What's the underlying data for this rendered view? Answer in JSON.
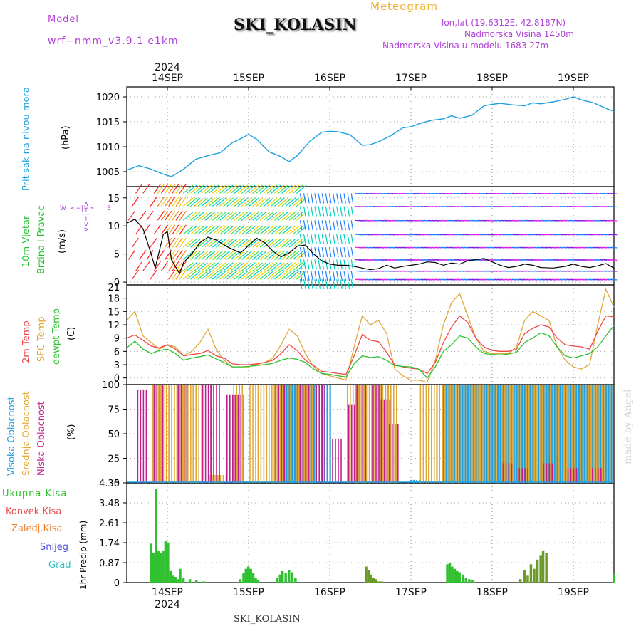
{
  "header": {
    "model_label": "Model",
    "model_name": "wrf−nmm_v3.9.1  e1km",
    "meteogram": "Meteogram",
    "station": "SKI_KOLASIN",
    "lonlat": "lon,lat (19.6312E, 42.8187N)",
    "altitude": "Nadmorska Visina 1450m",
    "model_altitude": "Nadmorska Visina u modelu 1683.27m",
    "footer_station": "SKI_KOLASIN",
    "credit": "made by Angel"
  },
  "time_axis": {
    "year_label": "2024",
    "days": [
      "14SEP",
      "15SEP",
      "16SEP",
      "17SEP",
      "18SEP",
      "19SEP"
    ],
    "range_days": [
      -0.5,
      5.5
    ]
  },
  "colors": {
    "pressure": "#1aa0e0",
    "wind_speed": "#000000",
    "temp2m": "#f04848",
    "sfc_temp": "#e0a838",
    "dewpt": "#30c030",
    "high_cloud": "#20a0e0",
    "mid_cloud": "#e0a838",
    "low_cloud": "#c0208a",
    "precip_total": "#30c030",
    "precip_conv": "#f04848",
    "precip_freez": "#f08030",
    "snow": "#5050e0",
    "grad": "#30c0c0",
    "wind_label": "#20c030",
    "cloud_label1": "#20a0e0"
  },
  "panels": {
    "pressure": {
      "ylabel": "Pritisak na nivou mora",
      "unit": "(hPa)",
      "yticks": [
        1005,
        1010,
        1015,
        1020
      ],
      "ylim": [
        1002,
        1022
      ]
    },
    "wind": {
      "ylabel1": "10m Vjetar",
      "ylabel2": "Brzina i Pravac",
      "unit": "(m/s)",
      "compass_n": "N",
      "compass_s": "S",
      "compass_w": "W",
      "compass_e": "E",
      "compass_arrows": "<−|−>",
      "compass_v": "v<−|−>",
      "yticks": [
        0,
        5,
        10,
        15
      ],
      "ylim": [
        -0.5,
        17
      ]
    },
    "temperature": {
      "label_2m": "2m Temp",
      "label_sfc": "SFC Temp",
      "label_dew": "dewpt Temp",
      "unit": "(C)",
      "yticks": [
        0,
        3,
        6,
        9,
        12,
        15,
        18
      ],
      "top_tick": "21",
      "ylim": [
        -1.5,
        21
      ]
    },
    "clouds": {
      "label_high": "Visoka Oblacnost",
      "label_mid": "Srednja Oblacnost",
      "label_low": "Niska Oblacnost",
      "unit": "(%)",
      "yticks": [
        0,
        25,
        50,
        75,
        100
      ],
      "ylim": [
        0,
        100
      ]
    },
    "precip": {
      "unit": "1hr Precip (mm)",
      "yticks": [
        "0",
        "0.87",
        "1.74",
        "2.61",
        "3.48",
        "4.35"
      ],
      "ymax": 4.35,
      "legend": [
        "Ukupna Kisa",
        "Konvek.Kisa",
        "Zaledj.Kisa",
        "Snijeg",
        "Grad"
      ]
    }
  },
  "chart_data": [
    {
      "type": "line",
      "panel": "pressure",
      "x_unit": "day offset from 14SEP",
      "series": [
        {
          "x": [
            -0.5,
            -0.35,
            -0.2,
            -0.05,
            0.05,
            0.2,
            0.35,
            0.5,
            0.65,
            0.8,
            0.95,
            1.0,
            1.1,
            1.25,
            1.4,
            1.5,
            1.6,
            1.75,
            1.9,
            2.0,
            2.1,
            2.25,
            2.4,
            2.5,
            2.6,
            2.75,
            2.9,
            3.0,
            3.1,
            3.25,
            3.4,
            3.5,
            3.6,
            3.75,
            3.9,
            4.0,
            4.1,
            4.25,
            4.4,
            4.5,
            4.6,
            4.75,
            4.9,
            5.0,
            5.1,
            5.25,
            5.4,
            5.5
          ],
          "y": [
            1005.3,
            1006.2,
            1005.5,
            1004.5,
            1004.0,
            1005.5,
            1007.5,
            1008.2,
            1008.8,
            1010.8,
            1012.0,
            1012.5,
            1011.5,
            1009.0,
            1008.0,
            1007.0,
            1008.2,
            1011.0,
            1012.9,
            1013.1,
            1013.0,
            1012.4,
            1010.3,
            1010.4,
            1011.0,
            1012.2,
            1013.8,
            1014.0,
            1014.6,
            1015.3,
            1015.6,
            1016.2,
            1015.7,
            1016.3,
            1018.2,
            1018.5,
            1018.7,
            1018.4,
            1018.2,
            1018.8,
            1018.6,
            1019.0,
            1019.5,
            1020.0,
            1019.4,
            1018.8,
            1017.7,
            1017.1
          ]
        }
      ]
    },
    {
      "type": "line",
      "panel": "wind",
      "series": [
        {
          "name": "wind speed",
          "x": [
            -0.5,
            -0.4,
            -0.3,
            -0.2,
            -0.15,
            -0.05,
            0.0,
            0.05,
            0.15,
            0.2,
            0.3,
            0.4,
            0.5,
            0.6,
            0.75,
            0.9,
            1.0,
            1.1,
            1.2,
            1.3,
            1.4,
            1.5,
            1.6,
            1.7,
            1.8,
            1.9,
            2.0,
            2.1,
            2.2,
            2.3,
            2.4,
            2.5,
            2.6,
            2.7,
            2.8,
            2.9,
            3.0,
            3.1,
            3.2,
            3.3,
            3.4,
            3.5,
            3.6,
            3.7,
            3.8,
            3.9,
            4.0,
            4.1,
            4.2,
            4.3,
            4.4,
            4.5,
            4.6,
            4.75,
            4.9,
            5.0,
            5.1,
            5.2,
            5.3,
            5.4,
            5.5
          ],
          "y": [
            10.5,
            11.2,
            9.5,
            5.0,
            2.5,
            8.5,
            9.0,
            4.0,
            1.5,
            3.5,
            5.0,
            7.0,
            8.0,
            7.5,
            6.2,
            5.2,
            6.5,
            7.8,
            7.0,
            5.5,
            4.5,
            5.2,
            6.4,
            6.6,
            5.0,
            3.8,
            3.2,
            3.0,
            3.0,
            2.8,
            2.5,
            2.2,
            2.4,
            3.0,
            2.5,
            2.8,
            3.0,
            3.2,
            3.6,
            3.5,
            3.0,
            3.4,
            3.2,
            3.8,
            4.0,
            4.2,
            3.6,
            3.0,
            2.6,
            2.8,
            3.2,
            3.0,
            2.6,
            2.5,
            2.8,
            3.2,
            2.8,
            2.6,
            2.9,
            3.3,
            2.5
          ]
        }
      ]
    },
    {
      "type": "line",
      "panel": "temperature",
      "series": [
        {
          "name": "2m Temp",
          "x": [
            -0.5,
            -0.4,
            -0.3,
            -0.2,
            -0.1,
            0.0,
            0.1,
            0.2,
            0.3,
            0.4,
            0.5,
            0.6,
            0.7,
            0.8,
            0.9,
            1.0,
            1.1,
            1.2,
            1.3,
            1.4,
            1.5,
            1.6,
            1.7,
            1.8,
            1.9,
            2.0,
            2.1,
            2.2,
            2.3,
            2.4,
            2.5,
            2.6,
            2.7,
            2.8,
            2.9,
            3.0,
            3.1,
            3.2,
            3.3,
            3.4,
            3.5,
            3.6,
            3.7,
            3.8,
            3.9,
            4.0,
            4.1,
            4.2,
            4.3,
            4.4,
            4.5,
            4.6,
            4.7,
            4.8,
            4.9,
            5.0,
            5.1,
            5.2,
            5.3,
            5.4,
            5.5
          ],
          "y": [
            9.0,
            9.7,
            8.5,
            7.2,
            6.8,
            7.5,
            6.5,
            5.0,
            5.3,
            5.5,
            6.2,
            5.0,
            4.5,
            3.2,
            3.0,
            3.0,
            3.2,
            3.5,
            4.0,
            5.5,
            7.5,
            6.2,
            4.0,
            2.8,
            1.5,
            1.3,
            1.0,
            0.8,
            5.0,
            9.8,
            8.5,
            8.2,
            5.8,
            3.0,
            2.5,
            2.2,
            2.0,
            1.0,
            3.5,
            8.0,
            11.5,
            14.0,
            12.5,
            9.0,
            7.0,
            6.2,
            6.0,
            6.0,
            6.5,
            10.0,
            11.2,
            12.0,
            11.5,
            9.0,
            7.5,
            7.2,
            7.0,
            6.5,
            10.5,
            14.0,
            13.8
          ]
        },
        {
          "name": "SFC Temp",
          "x": [
            -0.5,
            -0.4,
            -0.3,
            -0.2,
            -0.1,
            0.0,
            0.1,
            0.2,
            0.3,
            0.4,
            0.5,
            0.6,
            0.7,
            0.8,
            0.9,
            1.0,
            1.1,
            1.2,
            1.3,
            1.4,
            1.5,
            1.6,
            1.7,
            1.8,
            1.9,
            2.0,
            2.1,
            2.2,
            2.3,
            2.4,
            2.5,
            2.6,
            2.7,
            2.8,
            2.9,
            3.0,
            3.1,
            3.2,
            3.3,
            3.4,
            3.5,
            3.6,
            3.7,
            3.8,
            3.9,
            4.0,
            4.1,
            4.2,
            4.3,
            4.4,
            4.5,
            4.6,
            4.7,
            4.8,
            4.9,
            5.0,
            5.1,
            5.2,
            5.3,
            5.4,
            5.5
          ],
          "y": [
            13.0,
            15.0,
            9.5,
            8.0,
            6.5,
            7.5,
            7.0,
            5.0,
            6.0,
            8.0,
            11.0,
            6.5,
            4.0,
            2.5,
            2.5,
            2.5,
            3.0,
            3.5,
            4.5,
            7.5,
            11.0,
            9.5,
            5.5,
            2.5,
            1.0,
            0.5,
            0.0,
            -0.5,
            7.0,
            14.0,
            12.0,
            13.0,
            10.0,
            2.0,
            0.5,
            -0.5,
            -0.5,
            -1.0,
            4.0,
            12.0,
            17.0,
            19.0,
            14.0,
            9.0,
            6.0,
            5.5,
            5.5,
            5.5,
            7.0,
            13.0,
            15.0,
            14.0,
            13.0,
            7.0,
            4.0,
            2.5,
            2.0,
            3.0,
            12.0,
            20.0,
            16.0
          ]
        },
        {
          "name": "dewpt Temp",
          "x": [
            -0.5,
            -0.4,
            -0.3,
            -0.2,
            -0.1,
            0.0,
            0.1,
            0.2,
            0.3,
            0.4,
            0.5,
            0.6,
            0.7,
            0.8,
            0.9,
            1.0,
            1.1,
            1.2,
            1.3,
            1.4,
            1.5,
            1.6,
            1.7,
            1.8,
            1.9,
            2.0,
            2.1,
            2.2,
            2.3,
            2.4,
            2.5,
            2.6,
            2.7,
            2.8,
            2.9,
            3.0,
            3.1,
            3.2,
            3.3,
            3.4,
            3.5,
            3.6,
            3.7,
            3.8,
            3.9,
            4.0,
            4.1,
            4.2,
            4.3,
            4.4,
            4.5,
            4.6,
            4.7,
            4.8,
            4.9,
            5.0,
            5.1,
            5.2,
            5.3,
            5.4,
            5.5
          ],
          "y": [
            6.8,
            8.3,
            6.5,
            5.5,
            6.2,
            6.5,
            5.5,
            4.0,
            4.5,
            4.8,
            5.2,
            4.3,
            3.5,
            2.5,
            2.5,
            2.6,
            2.8,
            3.0,
            3.3,
            4.0,
            4.5,
            4.2,
            3.5,
            2.0,
            1.0,
            0.8,
            0.5,
            0.2,
            3.2,
            5.0,
            4.6,
            4.8,
            4.0,
            2.8,
            2.6,
            2.5,
            2.0,
            0.0,
            2.5,
            6.0,
            7.5,
            9.5,
            9.0,
            7.0,
            5.5,
            5.3,
            5.2,
            5.4,
            5.8,
            8.0,
            9.0,
            10.2,
            9.5,
            7.0,
            5.0,
            4.5,
            5.0,
            5.5,
            7.0,
            9.5,
            11.8
          ]
        }
      ]
    },
    {
      "type": "bar",
      "panel": "clouds",
      "series": [
        {
          "name": "Visoka Oblacnost",
          "x": [
            0.3,
            0.9,
            1.4,
            1.5,
            1.6,
            1.7,
            1.9,
            3.0,
            3.4,
            3.5,
            3.6,
            3.7,
            3.8,
            3.9,
            4.0,
            4.1,
            4.2,
            4.3,
            4.4,
            4.5,
            4.6,
            4.7,
            4.8,
            4.9,
            5.0,
            5.1,
            5.2,
            5.3,
            5.4,
            5.5
          ],
          "y": [
            2,
            2,
            100,
            100,
            100,
            100,
            100,
            3,
            100,
            100,
            100,
            100,
            100,
            100,
            100,
            100,
            100,
            100,
            100,
            100,
            100,
            100,
            100,
            100,
            100,
            100,
            100,
            100,
            100,
            100
          ]
        },
        {
          "name": "Srednja Oblacnost",
          "x": [
            -0.2,
            -0.1,
            0.0,
            0.1,
            0.2,
            0.3,
            0.5,
            0.6,
            0.8,
            1.0,
            1.1,
            1.2,
            1.3,
            1.4,
            1.5,
            1.6,
            1.7,
            2.2,
            2.3,
            2.4,
            2.5,
            2.6,
            2.7,
            3.1,
            3.2,
            3.3,
            3.4,
            3.5,
            3.6,
            3.7,
            3.8,
            3.9,
            4.0,
            4.1,
            4.2,
            4.3,
            4.4,
            4.5,
            4.6,
            4.7,
            4.8,
            4.9,
            5.0,
            5.1,
            5.2,
            5.3,
            5.4
          ],
          "y": [
            100,
            100,
            100,
            100,
            100,
            100,
            8,
            8,
            100,
            100,
            100,
            100,
            100,
            100,
            100,
            100,
            100,
            100,
            100,
            100,
            100,
            100,
            100,
            100,
            100,
            100,
            100,
            100,
            100,
            100,
            100,
            100,
            100,
            100,
            100,
            100,
            100,
            100,
            100,
            100,
            100,
            100,
            100,
            100,
            100,
            100,
            100
          ]
        },
        {
          "name": "Niska Oblacnost",
          "x": [
            -0.4,
            -0.2,
            0.1,
            0.4,
            0.5,
            0.7,
            0.8,
            1.3,
            1.6,
            1.8,
            2.0,
            2.2,
            2.3,
            2.5,
            2.6,
            2.7,
            4.1,
            4.3,
            4.6,
            4.9,
            5.2,
            5.5
          ],
          "y": [
            95,
            100,
            100,
            100,
            100,
            90,
            90,
            100,
            100,
            100,
            45,
            80,
            100,
            100,
            85,
            60,
            20,
            15,
            20,
            15,
            15,
            35
          ]
        }
      ]
    },
    {
      "type": "bar",
      "panel": "precip",
      "series": [
        {
          "name": "Ukupna Kisa",
          "x": [
            -0.2,
            -0.17,
            -0.14,
            -0.11,
            -0.08,
            -0.05,
            -0.02,
            0.01,
            0.04,
            0.07,
            0.1,
            0.13,
            0.16,
            0.2,
            0.28,
            0.36,
            0.45,
            0.9,
            0.94,
            0.97,
            1.0,
            1.03,
            1.06,
            1.09,
            1.12,
            1.35,
            1.39,
            1.42,
            1.46,
            1.5,
            1.54,
            1.58,
            2.45,
            2.48,
            2.51,
            2.54,
            2.57,
            2.6,
            2.64,
            3.45,
            3.48,
            3.51,
            3.54,
            3.57,
            3.6,
            3.64,
            3.68,
            3.72,
            3.76,
            4.35,
            4.4,
            4.44,
            4.48,
            4.52,
            4.56,
            4.6,
            4.63,
            4.67,
            5.5
          ],
          "y": [
            1.7,
            1.3,
            4.1,
            1.4,
            1.3,
            1.4,
            1.8,
            1.75,
            0.5,
            0.3,
            0.25,
            0.15,
            0.6,
            0.2,
            0.15,
            0.1,
            0.05,
            0.15,
            0.4,
            0.6,
            0.7,
            0.6,
            0.4,
            0.2,
            0.1,
            0.2,
            0.35,
            0.5,
            0.4,
            0.55,
            0.45,
            0.2,
            0.7,
            0.55,
            0.35,
            0.2,
            0.15,
            0.05,
            0.05,
            0.8,
            0.85,
            0.7,
            0.6,
            0.5,
            0.45,
            0.35,
            0.2,
            0.15,
            0.1,
            0.15,
            0.55,
            0.3,
            0.8,
            0.6,
            1.0,
            1.2,
            1.4,
            1.3,
            0.4
          ]
        }
      ]
    }
  ]
}
